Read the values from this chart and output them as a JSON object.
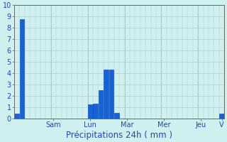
{
  "title": "",
  "xlabel": "Précipitations 24h ( mm )",
  "ylabel": "",
  "ylim": [
    0,
    10
  ],
  "yticks": [
    0,
    1,
    2,
    3,
    4,
    5,
    6,
    7,
    8,
    9,
    10
  ],
  "bar_color": "#1464d8",
  "bar_edge_color": "#0a3ab0",
  "background_color": "#cff0ee",
  "grid_color": "#aacccc",
  "n_bars": 40,
  "values": [
    0.4,
    8.8,
    0.0,
    0.0,
    0.0,
    0.0,
    0.0,
    0.0,
    0.0,
    0.0,
    0.0,
    0.0,
    0.0,
    0.0,
    1.2,
    1.3,
    2.5,
    4.3,
    4.3,
    0.5,
    0.0,
    0.0,
    0.0,
    0.0,
    0.0,
    0.0,
    0.0,
    0.0,
    0.0,
    0.0,
    0.0,
    0.0,
    0.0,
    0.0,
    0.0,
    0.0,
    0.0,
    0.0,
    0.0,
    0.4
  ],
  "day_tick_positions": [
    7,
    14,
    21,
    28,
    35,
    39
  ],
  "day_labels": [
    "Sam",
    "Lun",
    "Mar",
    "Mer",
    "Jeu",
    "V"
  ],
  "text_color": "#2244bb",
  "xlabel_fontsize": 8.5,
  "tick_fontsize": 7,
  "grid_major_every": 7
}
